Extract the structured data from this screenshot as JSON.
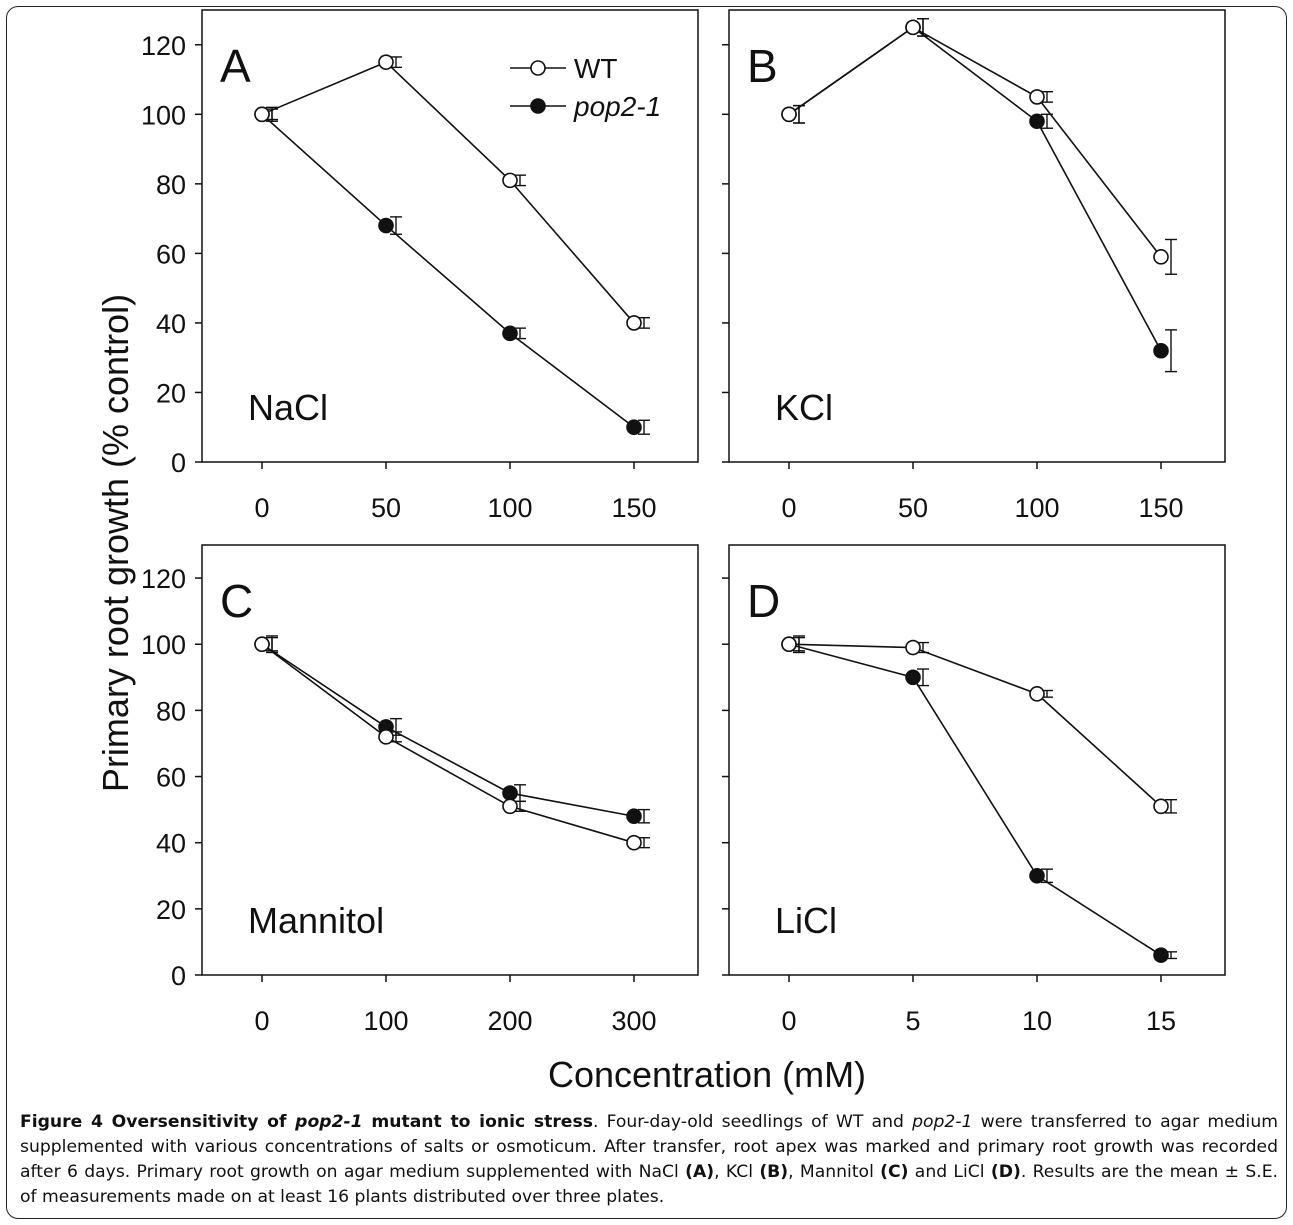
{
  "figure": {
    "y_axis_label": "Primary root growth (% control)",
    "x_axis_label": "Concentration (mM)",
    "legend": {
      "wt_label": "WT",
      "mutant_label": "pop2-1"
    }
  },
  "chart_data": [
    {
      "type": "line",
      "panel": "A",
      "annotation": "NaCl",
      "x": [
        0,
        50,
        100,
        150
      ],
      "ylim": [
        0,
        130
      ],
      "yticks": [
        0,
        20,
        40,
        60,
        80,
        100,
        120
      ],
      "grid": false,
      "legend_position": "top-right",
      "series": [
        {
          "name": "WT",
          "marker": "open-circle",
          "values": [
            100,
            115,
            81,
            40
          ],
          "errors": [
            1.5,
            1.5,
            1.5,
            1.5
          ]
        },
        {
          "name": "pop2-1",
          "marker": "filled-circle",
          "values": [
            100,
            68,
            37,
            10
          ],
          "errors": [
            2,
            2.5,
            1.5,
            2
          ]
        }
      ]
    },
    {
      "type": "line",
      "panel": "B",
      "annotation": "KCl",
      "x": [
        0,
        50,
        100,
        150
      ],
      "ylim": [
        0,
        130
      ],
      "yticks": [
        0,
        20,
        40,
        60,
        80,
        100,
        120
      ],
      "grid": false,
      "series": [
        {
          "name": "WT",
          "marker": "open-circle",
          "values": [
            100,
            125,
            105,
            59
          ],
          "errors": [
            2.5,
            2.5,
            1.5,
            5
          ]
        },
        {
          "name": "pop2-1",
          "marker": "filled-circle",
          "values": [
            100,
            125,
            98,
            32
          ],
          "errors": [
            2.5,
            2.5,
            2,
            6
          ]
        }
      ]
    },
    {
      "type": "line",
      "panel": "C",
      "annotation": "Mannitol",
      "x": [
        0,
        100,
        200,
        300
      ],
      "ylim": [
        0,
        130
      ],
      "yticks": [
        0,
        20,
        40,
        60,
        80,
        100,
        120
      ],
      "grid": false,
      "series": [
        {
          "name": "WT",
          "marker": "open-circle",
          "values": [
            100,
            72,
            51,
            40
          ],
          "errors": [
            2,
            1.5,
            1.5,
            1.5
          ]
        },
        {
          "name": "pop2-1",
          "marker": "filled-circle",
          "values": [
            100,
            75,
            55,
            48
          ],
          "errors": [
            2.5,
            2.5,
            2.5,
            2
          ]
        }
      ]
    },
    {
      "type": "line",
      "panel": "D",
      "annotation": "LiCl",
      "x": [
        0,
        5,
        10,
        15
      ],
      "ylim": [
        0,
        130
      ],
      "yticks": [
        0,
        20,
        40,
        60,
        80,
        100,
        120
      ],
      "grid": false,
      "series": [
        {
          "name": "WT",
          "marker": "open-circle",
          "values": [
            100,
            99,
            85,
            51
          ],
          "errors": [
            2,
            1.5,
            1,
            2
          ]
        },
        {
          "name": "pop2-1",
          "marker": "filled-circle",
          "values": [
            100,
            90,
            30,
            6
          ],
          "errors": [
            2.5,
            2.5,
            2,
            1
          ]
        }
      ]
    }
  ],
  "caption": {
    "bold_start": "Figure 4 Oversensitivity of ",
    "bold_italic": "pop2-1",
    "bold_end": " mutant to ionic stress",
    "text_1": ". Four-day-old seedlings of WT and ",
    "italic_1": "pop2-1",
    "text_2": " were transferred to agar medium supplemented with various concentrations of salts or osmoticum. After transfer, root apex was marked and primary root growth was recorded after 6 days. Primary root growth on agar medium supplemented with NaCl ",
    "ref_a": "(A)",
    "text_3": ", KCl ",
    "ref_b": "(B)",
    "text_4": ", Mannitol ",
    "ref_c": "(C)",
    "text_5": " and LiCl ",
    "ref_d": "(D)",
    "text_6": ". Results are the mean ± S.E. of measurements made on at least 16 plants distributed over three plates."
  }
}
